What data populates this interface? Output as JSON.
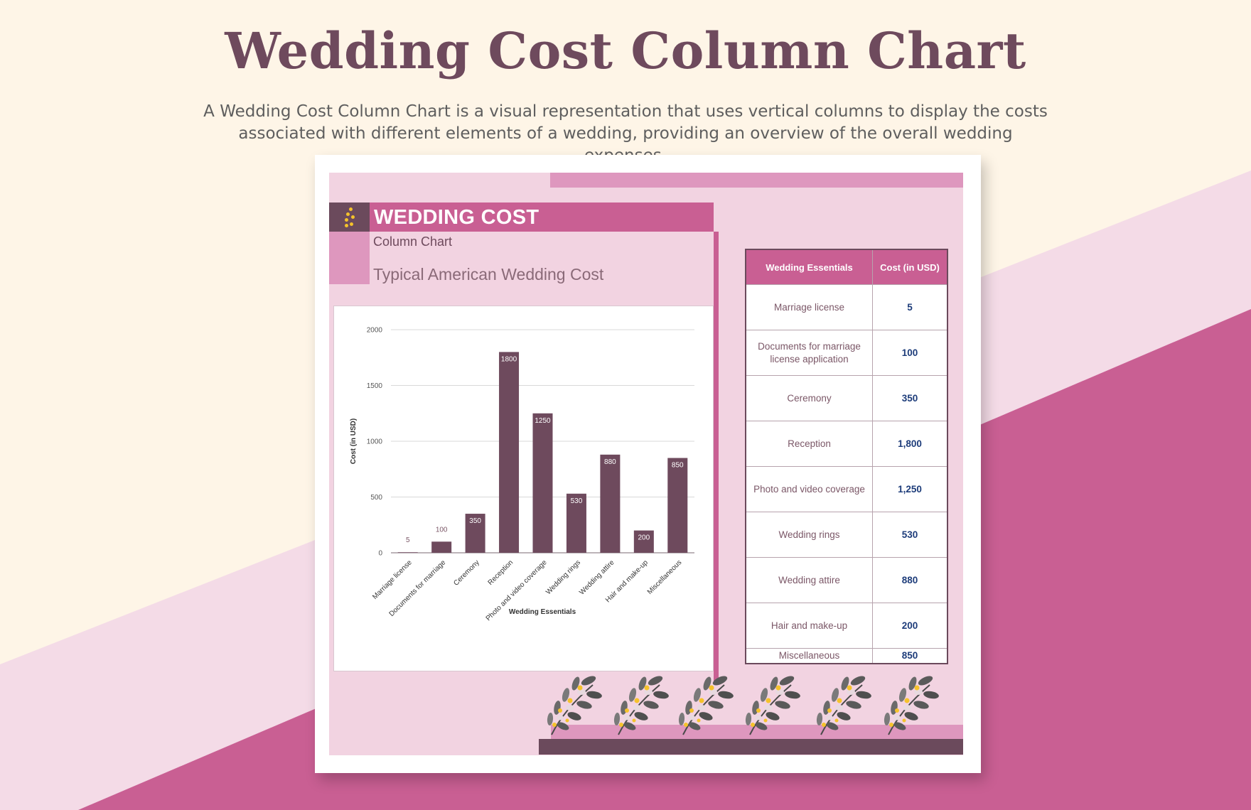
{
  "page": {
    "title": "Wedding Cost Column Chart",
    "description_line1": "A Wedding Cost Column Chart is a visual representation that uses vertical columns to display the costs",
    "description_line2": "associated with different elements of a wedding, providing an overview of the overall wedding expenses."
  },
  "sheet": {
    "title": "WEDDING COST",
    "subtitle": "Column Chart",
    "caption": "Typical American Wedding Cost",
    "logo_icon": "dots-logo-icon"
  },
  "colors": {
    "background": "#fef5e7",
    "stripe_light": "#f4dbe7",
    "stripe_dark": "#c95f93",
    "bar": "#6e4a5d",
    "accent": "#c95f93",
    "accent_light": "#de97be",
    "value_text": "#1d3c7a"
  },
  "chart_data": {
    "type": "bar",
    "title": "",
    "xlabel": "Wedding Essentials",
    "ylabel": "Cost (in USD)",
    "categories": [
      "Marriage license",
      "Documents for marriage",
      "Ceremony",
      "Reception",
      "Photo and video coverage",
      "Wedding rings",
      "Wedding attire",
      "Hair and make-up",
      "Miscellaneous"
    ],
    "values": [
      5,
      100,
      350,
      1800,
      1250,
      530,
      880,
      200,
      850
    ],
    "ylim": [
      0,
      2000
    ],
    "yticks": [
      0,
      500,
      1000,
      1500,
      2000
    ],
    "grid": true,
    "data_labels": true
  },
  "table": {
    "headers": [
      "Wedding Essentials",
      "Cost (in USD)"
    ],
    "rows": [
      {
        "item": "Marriage license",
        "cost": "5"
      },
      {
        "item": "Documents for marriage license application",
        "cost": "100"
      },
      {
        "item": "Ceremony",
        "cost": "350"
      },
      {
        "item": "Reception",
        "cost": "1,800"
      },
      {
        "item": "Photo and video coverage",
        "cost": "1,250"
      },
      {
        "item": "Wedding rings",
        "cost": "530"
      },
      {
        "item": "Wedding attire",
        "cost": "880"
      },
      {
        "item": "Hair and make-up",
        "cost": "200"
      },
      {
        "item": "Miscellaneous",
        "cost": "850"
      }
    ]
  },
  "decorations": {
    "sprig_icon": "floral-sprig-icon",
    "sprig_count": 6
  }
}
